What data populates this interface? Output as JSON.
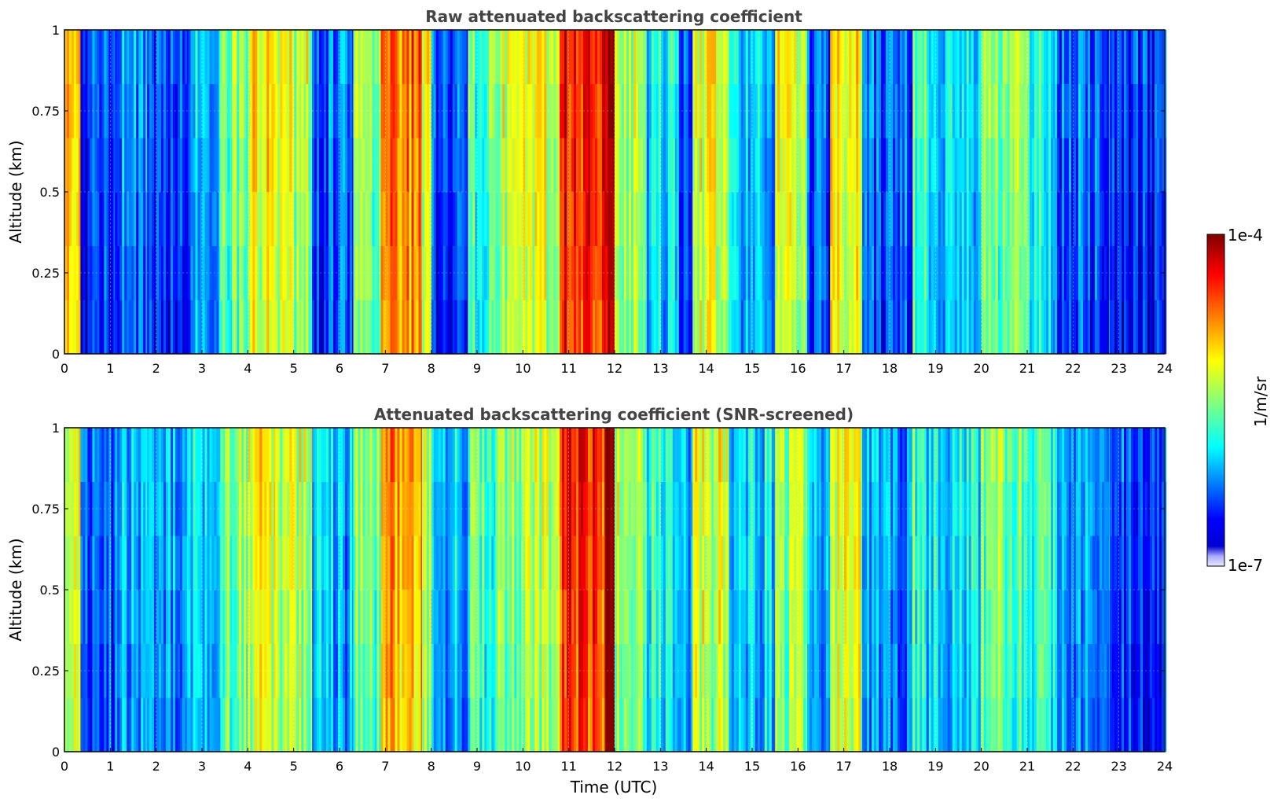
{
  "chart_data": [
    {
      "type": "heatmap",
      "title": "Raw attenuated backscattering coefficient",
      "xlabel": "",
      "ylabel": "Altitude (km)",
      "xlim": [
        0,
        24
      ],
      "ylim": [
        0,
        1
      ],
      "xticks": [
        "0",
        "1",
        "2",
        "3",
        "4",
        "5",
        "6",
        "7",
        "8",
        "9",
        "10",
        "11",
        "12",
        "13",
        "14",
        "15",
        "16",
        "17",
        "18",
        "19",
        "20",
        "21",
        "22",
        "23",
        "24"
      ],
      "yticks": [
        "0",
        "0.25",
        "0.5",
        "0.75",
        "1"
      ],
      "grid": true,
      "colormap": "jet",
      "color_scale": "log",
      "color_range": [
        "1e-7",
        "1e-4"
      ],
      "color_units": "1/m/sr",
      "bands": [
        {
          "t0": 0.0,
          "t1": 0.35,
          "level": 0.65
        },
        {
          "t0": 0.35,
          "t1": 1.1,
          "level": 0.18
        },
        {
          "t0": 1.1,
          "t1": 1.8,
          "level": 0.25
        },
        {
          "t0": 1.8,
          "t1": 2.7,
          "level": 0.2
        },
        {
          "t0": 2.7,
          "t1": 3.4,
          "level": 0.3
        },
        {
          "t0": 3.4,
          "t1": 4.0,
          "level": 0.5
        },
        {
          "t0": 4.0,
          "t1": 4.6,
          "level": 0.62
        },
        {
          "t0": 4.6,
          "t1": 5.4,
          "level": 0.55
        },
        {
          "t0": 5.4,
          "t1": 6.3,
          "level": 0.22
        },
        {
          "t0": 6.3,
          "t1": 6.9,
          "level": 0.5
        },
        {
          "t0": 6.9,
          "t1": 7.8,
          "level": 0.75
        },
        {
          "t0": 7.8,
          "t1": 8.0,
          "level": 0.55
        },
        {
          "t0": 8.0,
          "t1": 8.8,
          "level": 0.18
        },
        {
          "t0": 8.8,
          "t1": 9.4,
          "level": 0.45
        },
        {
          "t0": 9.4,
          "t1": 10.0,
          "level": 0.55
        },
        {
          "t0": 10.0,
          "t1": 10.8,
          "level": 0.6
        },
        {
          "t0": 10.8,
          "t1": 11.8,
          "level": 0.85
        },
        {
          "t0": 11.8,
          "t1": 12.0,
          "level": 0.98
        },
        {
          "t0": 12.0,
          "t1": 12.7,
          "level": 0.55
        },
        {
          "t0": 12.7,
          "t1": 13.4,
          "level": 0.35
        },
        {
          "t0": 13.4,
          "t1": 13.7,
          "level": 0.2
        },
        {
          "t0": 13.7,
          "t1": 14.5,
          "level": 0.6
        },
        {
          "t0": 14.5,
          "t1": 15.5,
          "level": 0.3
        },
        {
          "t0": 15.5,
          "t1": 16.2,
          "level": 0.55
        },
        {
          "t0": 16.2,
          "t1": 16.7,
          "level": 0.2
        },
        {
          "t0": 16.7,
          "t1": 17.4,
          "level": 0.6
        },
        {
          "t0": 17.4,
          "t1": 18.5,
          "level": 0.2
        },
        {
          "t0": 18.5,
          "t1": 18.8,
          "level": 0.45
        },
        {
          "t0": 18.8,
          "t1": 20.0,
          "level": 0.3
        },
        {
          "t0": 20.0,
          "t1": 21.0,
          "level": 0.5
        },
        {
          "t0": 21.0,
          "t1": 21.6,
          "level": 0.38
        },
        {
          "t0": 21.6,
          "t1": 22.8,
          "level": 0.22
        },
        {
          "t0": 22.8,
          "t1": 24.0,
          "level": 0.15
        }
      ]
    },
    {
      "type": "heatmap",
      "title": "Attenuated backscattering coefficient (SNR-screened)",
      "xlabel": "Time (UTC)",
      "ylabel": "Altitude (km)",
      "xlim": [
        0,
        24
      ],
      "ylim": [
        0,
        1
      ],
      "xticks": [
        "0",
        "1",
        "2",
        "3",
        "4",
        "5",
        "6",
        "7",
        "8",
        "9",
        "10",
        "11",
        "12",
        "13",
        "14",
        "15",
        "16",
        "17",
        "18",
        "19",
        "20",
        "21",
        "22",
        "23",
        "24"
      ],
      "yticks": [
        "0",
        "0.25",
        "0.5",
        "0.75",
        "1"
      ],
      "grid": true,
      "colormap": "jet",
      "color_scale": "log",
      "color_range": [
        "1e-7",
        "1e-4"
      ],
      "color_units": "1/m/sr",
      "bands": [
        {
          "t0": 0.0,
          "t1": 0.35,
          "level": 0.6
        },
        {
          "t0": 0.35,
          "t1": 1.1,
          "level": 0.2
        },
        {
          "t0": 1.1,
          "t1": 1.8,
          "level": 0.3
        },
        {
          "t0": 1.8,
          "t1": 2.7,
          "level": 0.28
        },
        {
          "t0": 2.7,
          "t1": 3.4,
          "level": 0.35
        },
        {
          "t0": 3.4,
          "t1": 4.0,
          "level": 0.5
        },
        {
          "t0": 4.0,
          "t1": 4.6,
          "level": 0.6
        },
        {
          "t0": 4.6,
          "t1": 5.4,
          "level": 0.55
        },
        {
          "t0": 5.4,
          "t1": 6.3,
          "level": 0.3
        },
        {
          "t0": 6.3,
          "t1": 6.9,
          "level": 0.5
        },
        {
          "t0": 6.9,
          "t1": 7.8,
          "level": 0.72
        },
        {
          "t0": 7.8,
          "t1": 8.0,
          "level": 0.55
        },
        {
          "t0": 8.0,
          "t1": 8.8,
          "level": 0.3
        },
        {
          "t0": 8.8,
          "t1": 9.4,
          "level": 0.45
        },
        {
          "t0": 9.4,
          "t1": 10.0,
          "level": 0.5
        },
        {
          "t0": 10.0,
          "t1": 10.8,
          "level": 0.55
        },
        {
          "t0": 10.8,
          "t1": 11.8,
          "level": 0.82
        },
        {
          "t0": 11.8,
          "t1": 12.0,
          "level": 0.98
        },
        {
          "t0": 12.0,
          "t1": 12.7,
          "level": 0.55
        },
        {
          "t0": 12.7,
          "t1": 13.4,
          "level": 0.4
        },
        {
          "t0": 13.4,
          "t1": 13.7,
          "level": 0.28
        },
        {
          "t0": 13.7,
          "t1": 14.5,
          "level": 0.58
        },
        {
          "t0": 14.5,
          "t1": 15.5,
          "level": 0.35
        },
        {
          "t0": 15.5,
          "t1": 16.2,
          "level": 0.52
        },
        {
          "t0": 16.2,
          "t1": 16.7,
          "level": 0.28
        },
        {
          "t0": 16.7,
          "t1": 17.4,
          "level": 0.58
        },
        {
          "t0": 17.4,
          "t1": 18.5,
          "level": 0.26
        },
        {
          "t0": 18.5,
          "t1": 18.8,
          "level": 0.45
        },
        {
          "t0": 18.8,
          "t1": 20.0,
          "level": 0.35
        },
        {
          "t0": 20.0,
          "t1": 21.0,
          "level": 0.48
        },
        {
          "t0": 21.0,
          "t1": 21.6,
          "level": 0.4
        },
        {
          "t0": 21.6,
          "t1": 22.8,
          "level": 0.28
        },
        {
          "t0": 22.8,
          "t1": 24.0,
          "level": 0.2
        }
      ]
    }
  ],
  "colorbar": {
    "label": "1/m/sr",
    "max_label": "1e-4",
    "min_label": "1e-7",
    "colormap": "jet",
    "low_end_color": "#e8e8ff"
  }
}
